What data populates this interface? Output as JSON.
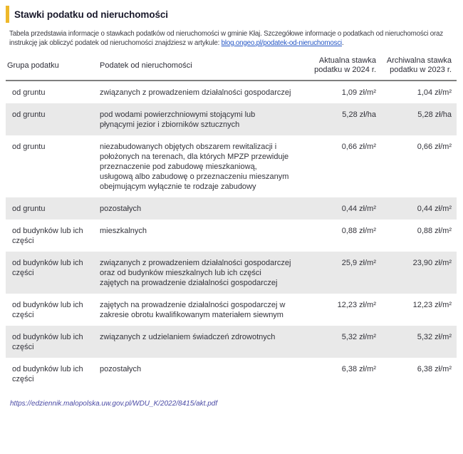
{
  "header": {
    "title": "Stawki podatku od nieruchomości"
  },
  "intro": {
    "text": "Tabela przedstawia informacje o stawkach podatków od nieruchomości w gminie Kłaj. Szczegółowe informacje o podatkach od nieruchomości oraz instrukcję jak obliczyć podatek od nieruchomości znajdziesz w artykule: ",
    "link_text": "blog.ongeo.pl/podatek-od-nieruchomosci",
    "suffix": "."
  },
  "table": {
    "columns": [
      "Grupa podatku",
      "Podatek od nieruchomości",
      "Aktualna stawka podatku w 2024 r.",
      "Archiwalna stawka podatku w 2023 r."
    ],
    "rows": [
      {
        "group": "od gruntu",
        "desc": "związanych z prowadzeniem działalności gospodarczej",
        "rate_2024": "1,09 zł/m²",
        "rate_2023": "1,04 zł/m²"
      },
      {
        "group": "od gruntu",
        "desc": "pod wodami powierzchniowymi stojącymi lub płynącymi jezior i zbiorników sztucznych",
        "rate_2024": "5,28 zł/ha",
        "rate_2023": "5,28 zł/ha"
      },
      {
        "group": "od gruntu",
        "desc": "niezabudowanych objętych obszarem rewitalizacji i położonych na terenach, dla których MPZP przewiduje przeznaczenie pod zabudowę mieszkaniową, usługową albo zabudowę o przeznaczeniu mieszanym obejmującym wyłącznie te rodzaje zabudowy",
        "rate_2024": "0,66 zł/m²",
        "rate_2023": "0,66 zł/m²"
      },
      {
        "group": "od gruntu",
        "desc": "pozostałych",
        "rate_2024": "0,44 zł/m²",
        "rate_2023": "0,44 zł/m²"
      },
      {
        "group": "od budynków lub ich części",
        "desc": "mieszkalnych",
        "rate_2024": "0,88 zł/m²",
        "rate_2023": "0,88 zł/m²"
      },
      {
        "group": "od budynków lub ich części",
        "desc": "związanych z prowadzeniem działalności gospodarczej oraz od budynków mieszkalnych lub ich części zajętych na prowadzenie działalności gospodarczej",
        "rate_2024": "25,9 zł/m²",
        "rate_2023": "23,90 zł/m²"
      },
      {
        "group": "od budynków lub ich części",
        "desc": "zajętych na prowadzenie działalności gospodarczej w zakresie obrotu kwalifikowanym materiałem siewnym",
        "rate_2024": "12,23 zł/m²",
        "rate_2023": "12,23 zł/m²"
      },
      {
        "group": "od budynków lub ich części",
        "desc": "związanych z udzielaniem świadczeń zdrowotnych",
        "rate_2024": "5,32 zł/m²",
        "rate_2023": "5,32 zł/m²"
      },
      {
        "group": "od budynków lub ich części",
        "desc": "pozostałych",
        "rate_2024": "6,38 zł/m²",
        "rate_2023": "6,38 zł/m²"
      }
    ]
  },
  "footer": {
    "link": "https://edziennik.malopolska.uw.gov.pl/WDU_K/2022/8415/akt.pdf"
  },
  "colors": {
    "accent_yellow": "#eeb82a",
    "row_alt_gray": "#e9e9e9",
    "header_rule": "#7f7f7f",
    "article_link_blue": "#2456c5",
    "source_link_purple": "#4a4aa5",
    "title_text": "#1a1a2c",
    "body_text": "#33333b"
  }
}
